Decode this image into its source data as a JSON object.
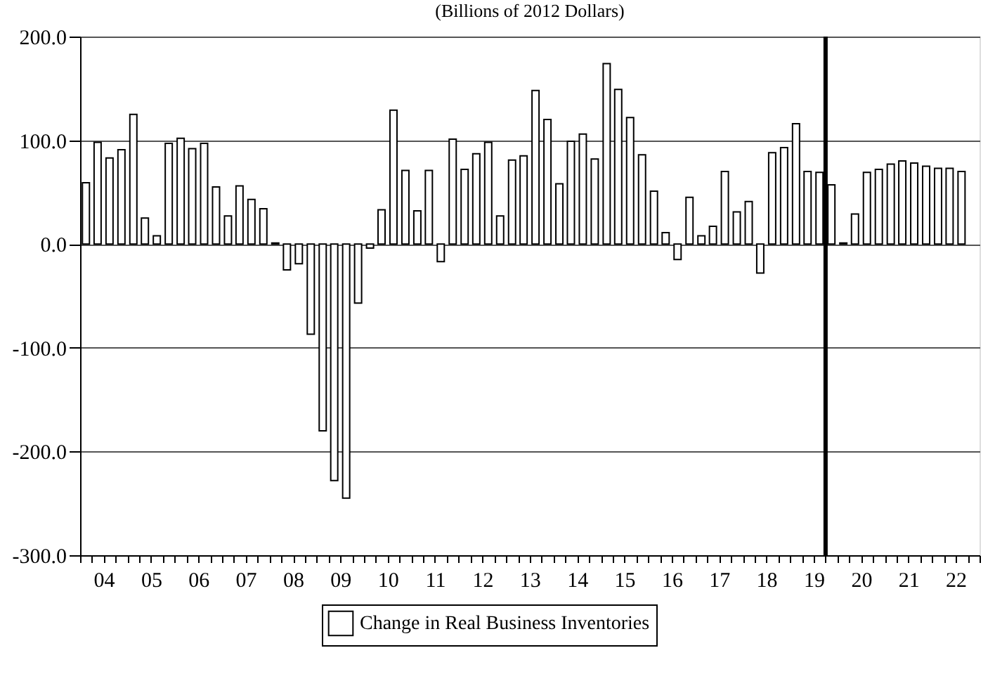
{
  "chart_data": {
    "type": "bar",
    "title": "(Billions of 2012 Dollars)",
    "x": [
      "2004-02-15",
      "2004-05-15",
      "2004-08-15",
      "2004-11-15",
      "2005-02-15",
      "2005-05-15",
      "2005-08-15",
      "2005-11-15",
      "2006-02-15",
      "2006-05-15",
      "2006-08-15",
      "2006-11-15",
      "2007-02-15",
      "2007-05-15",
      "2007-08-15",
      "2007-11-15",
      "2008-02-15",
      "2008-05-15",
      "2008-08-15",
      "2008-11-15",
      "2009-02-15",
      "2009-05-15",
      "2009-08-15",
      "2009-11-15",
      "2010-02-15",
      "2010-05-15",
      "2010-08-15",
      "2010-11-15",
      "2011-02-15",
      "2011-05-15",
      "2011-08-15",
      "2011-11-15",
      "2012-02-15",
      "2012-05-15",
      "2012-08-15",
      "2012-11-15",
      "2013-02-15",
      "2013-05-15",
      "2013-08-15",
      "2013-11-15",
      "2014-02-15",
      "2014-05-15",
      "2014-08-15",
      "2014-11-15",
      "2015-02-15",
      "2015-05-15",
      "2015-08-15",
      "2015-11-15",
      "2016-02-15",
      "2016-05-15",
      "2016-08-15",
      "2016-11-15",
      "2017-02-15",
      "2017-05-15",
      "2017-08-15",
      "2017-11-15",
      "2018-02-15",
      "2018-05-15",
      "2018-08-15",
      "2018-11-15",
      "2019-02-15",
      "2019-05-15",
      "2019-08-15",
      "2019-11-15",
      "2020-02-15",
      "2020-05-15",
      "2020-08-15",
      "2020-11-15",
      "2021-02-15",
      "2021-05-15",
      "2021-08-15",
      "2021-11-15",
      "2022-02-15",
      "2022-05-15",
      "2022-08-15"
    ],
    "series": [
      {
        "name": "Change in Real Business Inventories",
        "color": "#ffffff",
        "values": [
          59,
          98,
          83,
          91,
          125,
          25,
          8,
          97,
          102,
          92,
          97,
          55,
          27,
          56,
          43,
          34,
          1,
          -25,
          -19,
          -87,
          -180,
          -228,
          -245,
          -57,
          -4,
          33,
          129,
          71,
          32,
          71,
          -17,
          101,
          72,
          87,
          98,
          27,
          81,
          85,
          148,
          120,
          58,
          99,
          106,
          82,
          174,
          149,
          122,
          86,
          51,
          11,
          -15,
          45,
          8,
          17,
          70,
          31,
          41,
          -28,
          88,
          93,
          116,
          70,
          69,
          57,
          1,
          29,
          69,
          72,
          77,
          80,
          78,
          75,
          73,
          73,
          70
        ]
      }
    ],
    "xlim": [
      "2004-01-01",
      "2023-01-01"
    ],
    "xticks": [
      {
        "value": "2004-07-01",
        "label": "04"
      },
      {
        "value": "2005-07-01",
        "label": "05"
      },
      {
        "value": "2006-07-01",
        "label": "06"
      },
      {
        "value": "2007-07-01",
        "label": "07"
      },
      {
        "value": "2008-07-01",
        "label": "08"
      },
      {
        "value": "2009-07-01",
        "label": "09"
      },
      {
        "value": "2010-07-01",
        "label": "10"
      },
      {
        "value": "2011-07-01",
        "label": "11"
      },
      {
        "value": "2012-07-01",
        "label": "12"
      },
      {
        "value": "2013-07-01",
        "label": "13"
      },
      {
        "value": "2014-07-01",
        "label": "14"
      },
      {
        "value": "2015-07-01",
        "label": "15"
      },
      {
        "value": "2016-07-01",
        "label": "16"
      },
      {
        "value": "2017-07-01",
        "label": "17"
      },
      {
        "value": "2018-07-01",
        "label": "18"
      },
      {
        "value": "2019-07-01",
        "label": "19"
      },
      {
        "value": "2020-07-01",
        "label": "20"
      },
      {
        "value": "2021-07-01",
        "label": "21"
      },
      {
        "value": "2022-07-01",
        "label": "22"
      }
    ],
    "ylim": [
      -300,
      200
    ],
    "yticks": [
      {
        "value": -300,
        "label": "-300.0"
      },
      {
        "value": -200,
        "label": "-200.0"
      },
      {
        "value": -100,
        "label": "-100.0"
      },
      {
        "value": 0,
        "label": "0.0"
      },
      {
        "value": 100,
        "label": "100.0"
      },
      {
        "value": 200,
        "label": "200.0"
      }
    ],
    "grid": "y",
    "legend": "bottom",
    "ref_lines": [
      {
        "axis": "x",
        "value": "2019-10-01",
        "color": "#000000"
      }
    ]
  }
}
